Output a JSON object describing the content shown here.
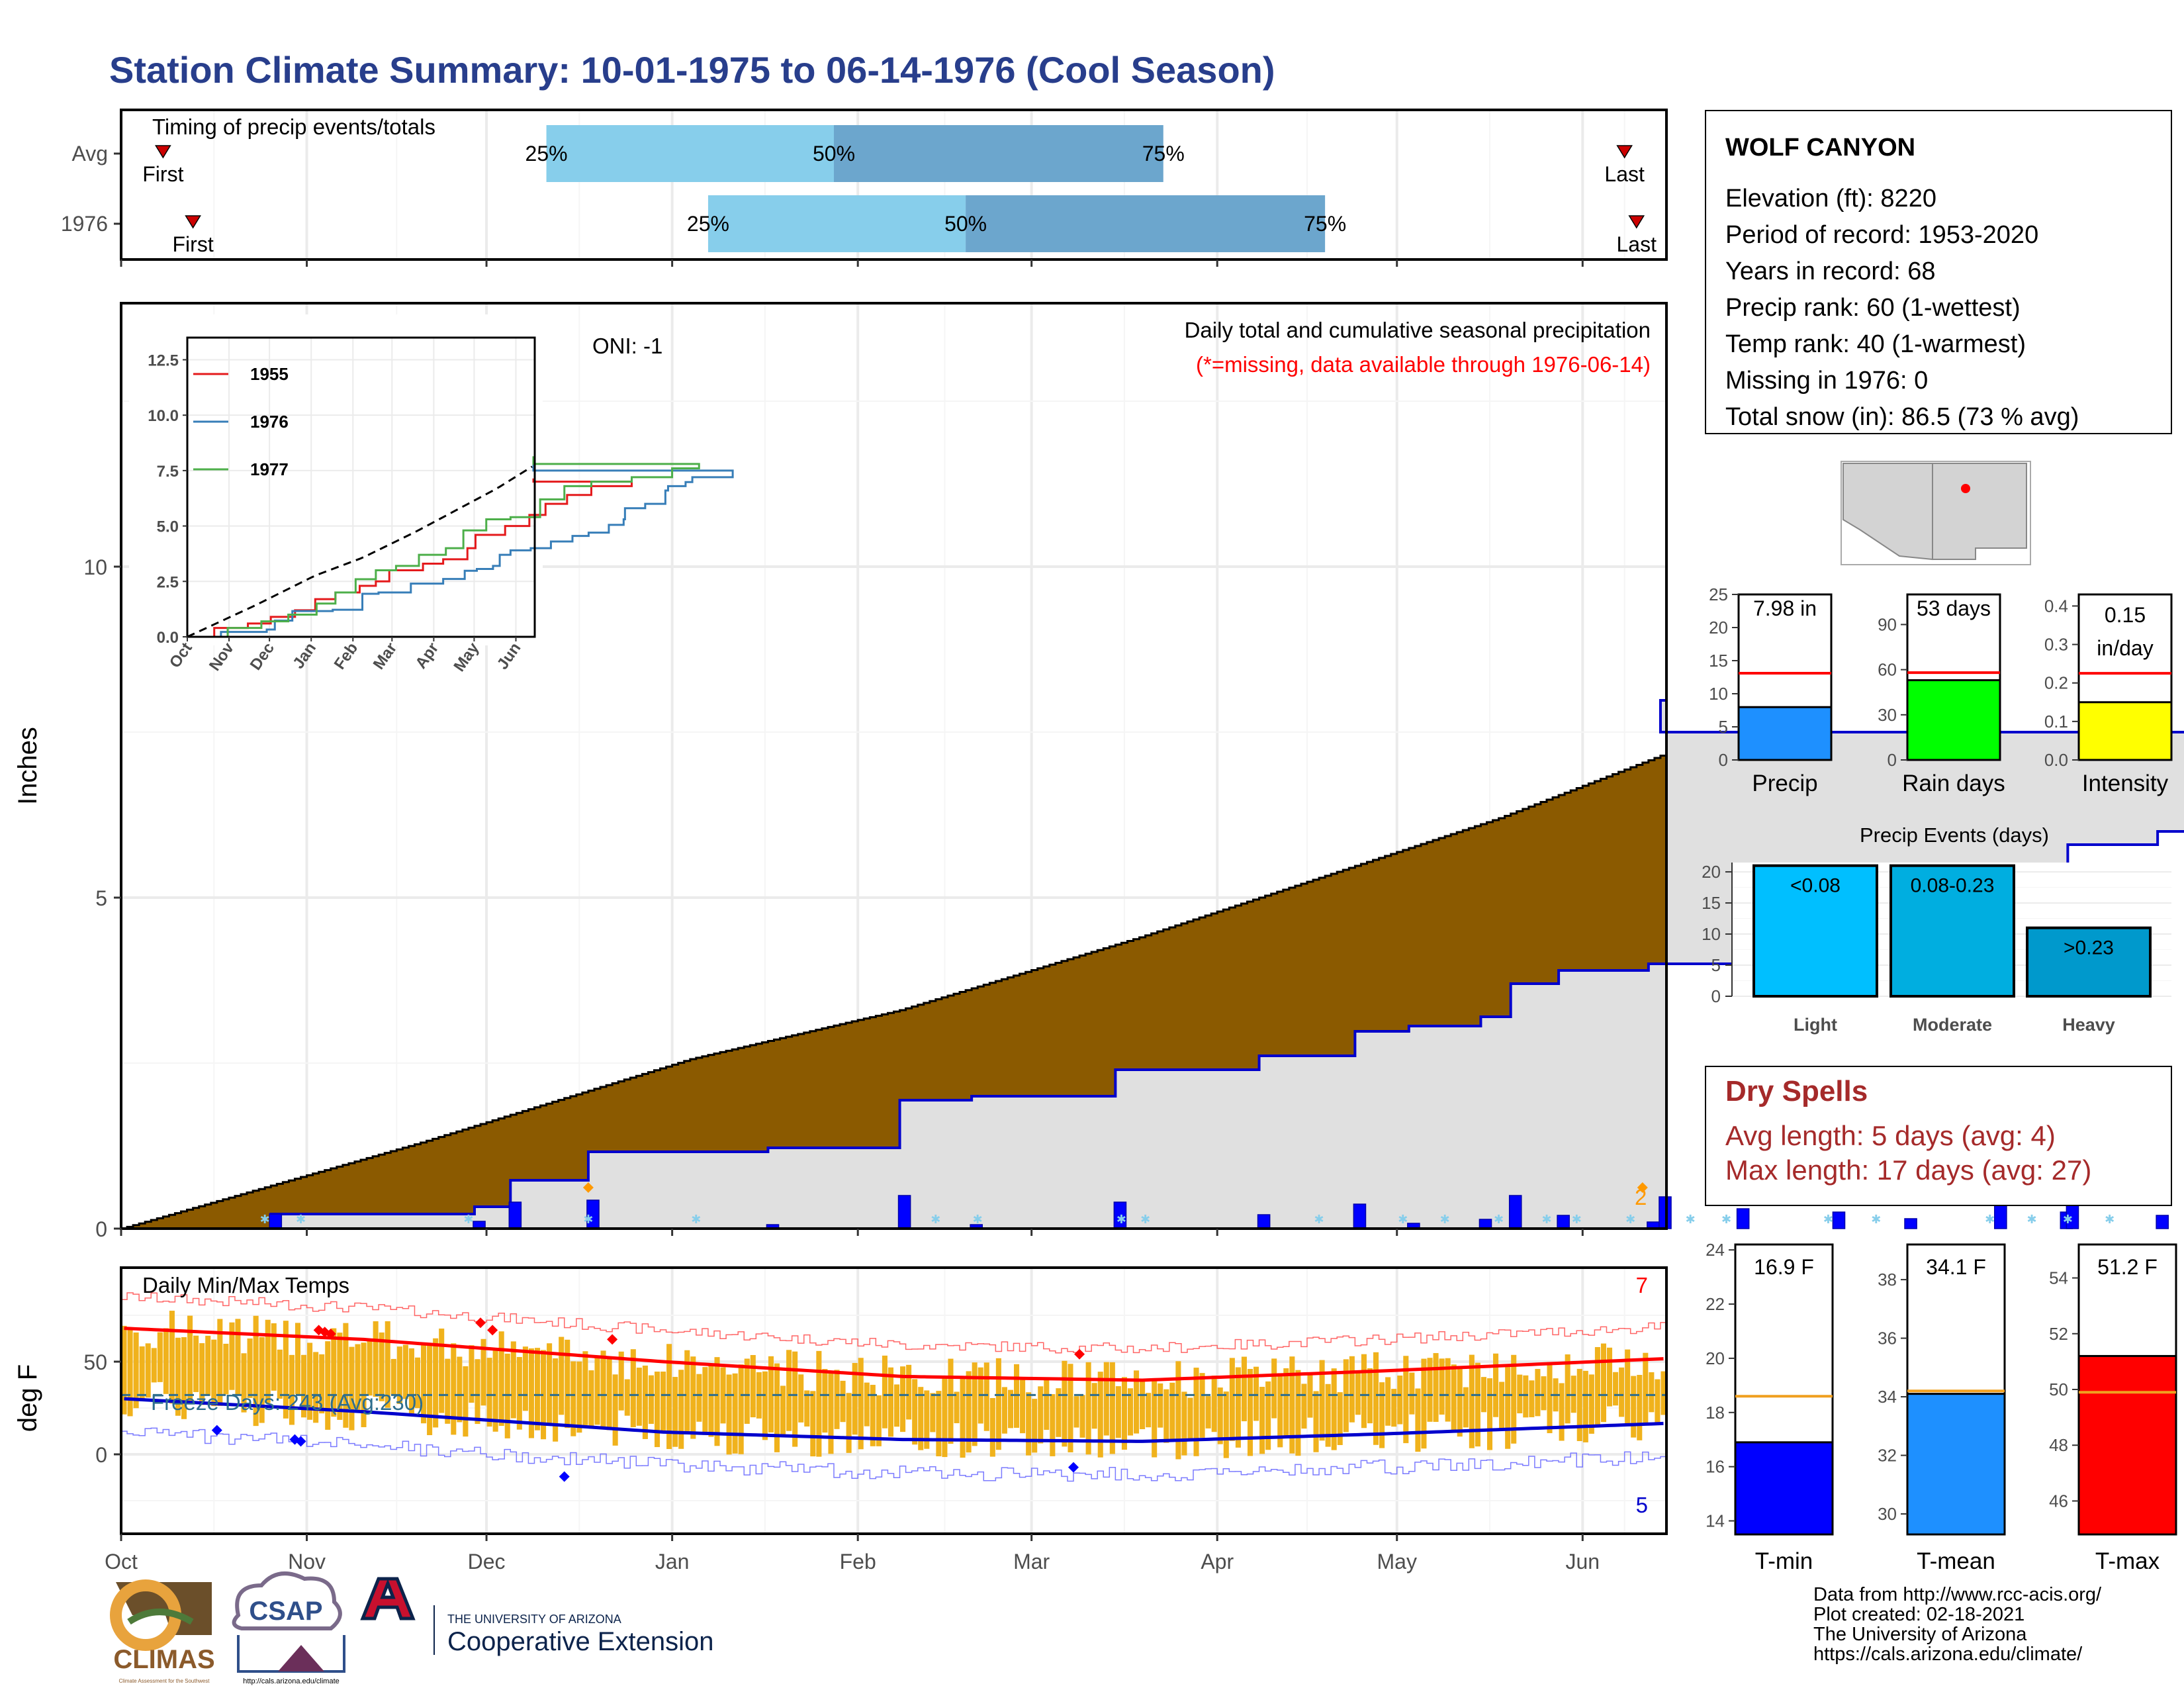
{
  "title": "Station Climate Summary: 10-01-1975 to 06-14-1976 (Cool Season)",
  "station": {
    "name": "WOLF CANYON",
    "lines": [
      "Elevation (ft): 8220",
      "Period of record: 1953-2020",
      "Years in record: 68",
      "Precip rank: 60 (1-wettest)",
      "Temp rank: 40 (1-warmest)",
      "Missing in 1976: 0",
      "Total snow (in): 86.5 (73 % avg)"
    ]
  },
  "months": [
    "Oct",
    "Nov",
    "Dec",
    "Jan",
    "Feb",
    "Mar",
    "Apr",
    "May",
    "Jun"
  ],
  "timing": {
    "title": "Timing of precip events/totals",
    "rows": [
      "Avg",
      "1976"
    ],
    "first_label": "First",
    "last_label": "Last",
    "pct_labels": [
      "25%",
      "50%",
      "75%"
    ],
    "colors": {
      "light": "#87ceeb",
      "dark": "#6ca6cd",
      "marker": "#cc0000"
    },
    "avg": {
      "first": "1975-10-08",
      "q25": "1975-12-11",
      "q50": "1976-01-28",
      "q75": "1976-03-23",
      "last": "1976-06-08"
    },
    "y1976": {
      "first": "1975-10-13",
      "q25": "1976-01-07",
      "q50": "1976-02-19",
      "q75": "1976-04-19",
      "last": "1976-06-10"
    }
  },
  "precip_panel": {
    "ylabel": "Inches",
    "title_line1": "Daily total and cumulative seasonal precipitation",
    "title_line2": "(*=missing, data available through 1976-06-14)",
    "oni": "ONI: -1",
    "count_label": "2",
    "colors": {
      "avg_fill": "#8b5a00",
      "obs_fill": "#e0e0e0",
      "obs_line": "#0000cc",
      "daily": "#0000ff",
      "snow": "#87ceeb",
      "extreme": "#ff9900"
    }
  },
  "inset": {
    "legend": [
      {
        "name": "1955",
        "color": "#e41a1c"
      },
      {
        "name": "1976",
        "color": "#377eb8"
      },
      {
        "name": "1977",
        "color": "#4daf4a"
      }
    ],
    "months": [
      "Oct",
      "Nov",
      "Dec",
      "Jan",
      "Feb",
      "Mar",
      "Apr",
      "May",
      "Jun"
    ],
    "yticks": [
      "0.0",
      "2.5",
      "5.0",
      "7.5",
      "10.0",
      "12.5"
    ]
  },
  "temp_panel": {
    "ylabel": "deg F",
    "title": "Daily Min/Max Temps",
    "freeze_label": "Freeze Days: 243 (Avg:230)",
    "max_count": "7",
    "min_count": "5",
    "colors": {
      "bar": "#f0b21c",
      "max_line": "#ff0000",
      "min_line": "#0000cc",
      "freeze": "#2e6e8e"
    }
  },
  "summary_bars": [
    {
      "label": "Precip",
      "value_text": "7.98 in",
      "value": 7.98,
      "avg": 13.1,
      "yticks": [
        "0",
        "5",
        "10",
        "15",
        "20",
        "25"
      ],
      "ymax": 25,
      "color": "#1e90ff"
    },
    {
      "label": "Rain days",
      "value_text": "53 days",
      "value": 53,
      "avg": 58,
      "yticks": [
        "0",
        "30",
        "60",
        "90"
      ],
      "ymax": 110,
      "color": "#00ff00"
    },
    {
      "label": "Intensity",
      "value_text": "0.15 in/day",
      "value": 0.15,
      "avg": 0.225,
      "yticks": [
        "0.0",
        "0.1",
        "0.2",
        "0.3",
        "0.4"
      ],
      "ymax": 0.43,
      "color": "#ffff00"
    }
  ],
  "precip_events": {
    "title": "Precip Events (days)",
    "yticks": [
      "0",
      "5",
      "10",
      "15",
      "20"
    ],
    "categories": [
      "Light",
      "Moderate",
      "Heavy"
    ],
    "bar_labels": [
      "<0.08",
      "0.08-0.23",
      ">0.23"
    ],
    "values": [
      21,
      21,
      11
    ],
    "colors": [
      "#00bfff",
      "#00aee0",
      "#0099cc"
    ]
  },
  "dry_spells": {
    "title": "Dry Spells",
    "avg_length": "Avg length: 5 days (avg: 4)",
    "max_length": "Max length: 17 days (avg: 27)",
    "color": "#a52a2a"
  },
  "temp_summary": [
    {
      "label": "T-min",
      "value_text": "16.9 F",
      "value": 16.9,
      "avg": 18.6,
      "ymin": 13.5,
      "ymax": 24.2,
      "yticks": [
        "14",
        "16",
        "18",
        "20",
        "22",
        "24"
      ],
      "color": "#0000ff"
    },
    {
      "label": "T-mean",
      "value_text": "34.1 F",
      "value": 34.1,
      "avg": 34.2,
      "ymin": 29.3,
      "ymax": 39.2,
      "yticks": [
        "30",
        "32",
        "34",
        "36",
        "38"
      ],
      "color": "#1e90ff"
    },
    {
      "label": "T-max",
      "value_text": "51.2 F",
      "value": 51.2,
      "avg": 49.9,
      "ymin": 44.8,
      "ymax": 55.2,
      "yticks": [
        "46",
        "48",
        "50",
        "52",
        "54"
      ],
      "color": "#ff0000"
    }
  ],
  "footer": {
    "credits": [
      "Data from http://www.rcc-acis.org/",
      "Plot created: 02-18-2021",
      "The University of Arizona",
      "https://cals.arizona.edu/climate/"
    ],
    "climas": "CLIMAS",
    "climas_sub": "Climate Assessment for the Southwest",
    "csap": "CSAP",
    "csap_url": "http://cals.arizona.edu/climate",
    "ua_small": "THE UNIVERSITY OF ARIZONA",
    "ua_big": "Cooperative Extension"
  }
}
